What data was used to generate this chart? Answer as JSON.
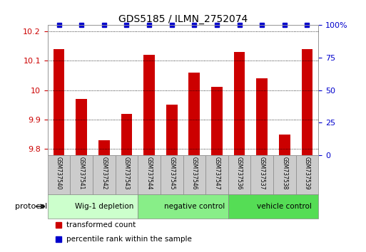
{
  "title": "GDS5185 / ILMN_2752074",
  "samples": [
    "GSM737540",
    "GSM737541",
    "GSM737542",
    "GSM737543",
    "GSM737544",
    "GSM737545",
    "GSM737546",
    "GSM737547",
    "GSM737536",
    "GSM737537",
    "GSM737538",
    "GSM737539"
  ],
  "bar_values": [
    10.14,
    9.97,
    9.83,
    9.92,
    10.12,
    9.95,
    10.06,
    10.01,
    10.13,
    10.04,
    9.85,
    10.14
  ],
  "percentile_values": [
    100,
    100,
    100,
    100,
    100,
    100,
    100,
    100,
    100,
    100,
    100,
    100
  ],
  "bar_color": "#cc0000",
  "percentile_color": "#0000cc",
  "ylim_left": [
    9.78,
    10.22
  ],
  "ylim_right": [
    0,
    100
  ],
  "yticks_left": [
    9.8,
    9.9,
    10.0,
    10.1,
    10.2
  ],
  "ytick_labels_left": [
    "9.8",
    "9.9",
    "10",
    "10.1",
    "10.2"
  ],
  "yticks_right": [
    0,
    25,
    50,
    75,
    100
  ],
  "ytick_labels_right": [
    "0",
    "25",
    "50",
    "75",
    "100%"
  ],
  "groups": [
    {
      "label": "Wig-1 depletion",
      "start": 0,
      "end": 4,
      "color": "#ccffcc"
    },
    {
      "label": "negative control",
      "start": 4,
      "end": 8,
      "color": "#88ee88"
    },
    {
      "label": "vehicle control",
      "start": 8,
      "end": 12,
      "color": "#55dd55"
    }
  ],
  "legend_items": [
    {
      "label": "transformed count",
      "color": "#cc0000",
      "marker": "s"
    },
    {
      "label": "percentile rank within the sample",
      "color": "#0000cc",
      "marker": "s"
    }
  ],
  "protocol_label": "protocol",
  "bar_bottom": 9.78,
  "xlabel_color": "#cc0000",
  "ylabel_right_color": "#0000cc",
  "gray_box_color": "#cccccc",
  "border_color": "#888888"
}
